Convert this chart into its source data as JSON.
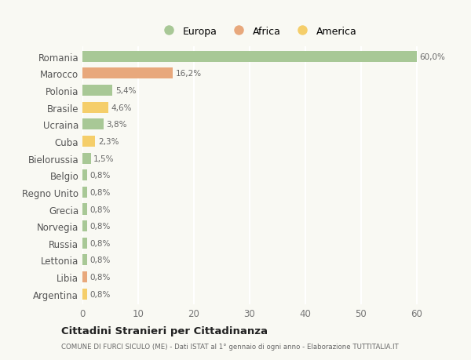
{
  "categories": [
    "Romania",
    "Marocco",
    "Polonia",
    "Brasile",
    "Ucraina",
    "Cuba",
    "Bielorussia",
    "Belgio",
    "Regno Unito",
    "Grecia",
    "Norvegia",
    "Russia",
    "Lettonia",
    "Libia",
    "Argentina"
  ],
  "values": [
    60.0,
    16.2,
    5.4,
    4.6,
    3.8,
    2.3,
    1.5,
    0.8,
    0.8,
    0.8,
    0.8,
    0.8,
    0.8,
    0.8,
    0.8
  ],
  "labels": [
    "60,0%",
    "16,2%",
    "5,4%",
    "4,6%",
    "3,8%",
    "2,3%",
    "1,5%",
    "0,8%",
    "0,8%",
    "0,8%",
    "0,8%",
    "0,8%",
    "0,8%",
    "0,8%",
    "0,8%"
  ],
  "continent": [
    "Europa",
    "Africa",
    "Europa",
    "America",
    "Europa",
    "America",
    "Europa",
    "Europa",
    "Europa",
    "Europa",
    "Europa",
    "Europa",
    "Europa",
    "Africa",
    "America"
  ],
  "colors": {
    "Europa": "#a8c896",
    "Africa": "#e8a87c",
    "America": "#f5ce6a"
  },
  "xlim": [
    0,
    63
  ],
  "title": "Cittadini Stranieri per Cittadinanza",
  "subtitle": "COMUNE DI FURCI SICULO (ME) - Dati ISTAT al 1° gennaio di ogni anno - Elaborazione TUTTITALIA.IT",
  "bg_color": "#f9f9f3",
  "grid_color": "#ffffff",
  "bar_height": 0.65,
  "xticks": [
    0,
    10,
    20,
    30,
    40,
    50,
    60
  ],
  "legend_order": [
    "Europa",
    "Africa",
    "America"
  ]
}
